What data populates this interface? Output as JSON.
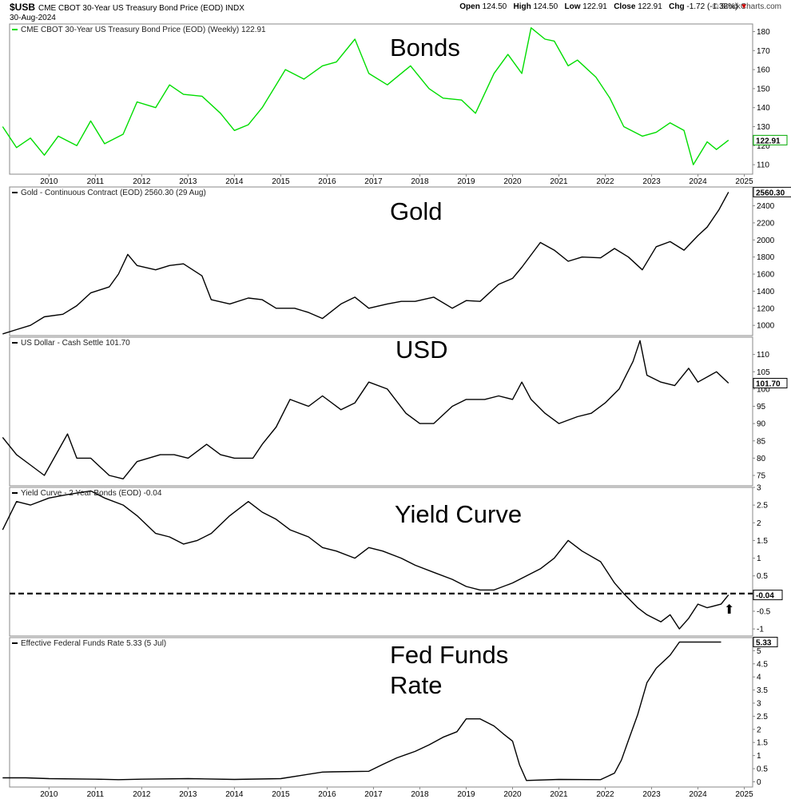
{
  "header": {
    "symbol": "$USB",
    "description": "CME CBOT 30-Year US Treasury Bond Price (EOD)",
    "exchange": "INDX",
    "date": "30-Aug-2024",
    "brand": "© StockCharts.com",
    "open_label": "Open",
    "open": "124.50",
    "high_label": "High",
    "high": "124.50",
    "low_label": "Low",
    "low": "122.91",
    "close_label": "Close",
    "close": "122.91",
    "chg_label": "Chg",
    "chg": "-1.72 (-1.38%)",
    "chg_arrow": "▼"
  },
  "chart_data": [
    {
      "type": "line",
      "id": "bonds",
      "title": "Bonds",
      "legend": "CME CBOT 30-Year US Treasury Bond Price (EOD) (Weekly) 122.91",
      "color": "#00dd00",
      "last_label": "122.91",
      "last_value": 122.91,
      "ylim": [
        105,
        184
      ],
      "yticks": [
        110,
        120,
        130,
        140,
        150,
        160,
        170,
        180
      ],
      "x": [
        2009.0,
        2009.3,
        2009.6,
        2009.9,
        2010.2,
        2010.6,
        2010.9,
        2011.2,
        2011.6,
        2011.9,
        2012.3,
        2012.6,
        2012.9,
        2013.3,
        2013.7,
        2014.0,
        2014.3,
        2014.6,
        2014.9,
        2015.1,
        2015.5,
        2015.9,
        2016.2,
        2016.6,
        2016.9,
        2017.3,
        2017.8,
        2018.2,
        2018.5,
        2018.9,
        2019.2,
        2019.6,
        2019.9,
        2020.2,
        2020.4,
        2020.7,
        2020.9,
        2021.2,
        2021.4,
        2021.8,
        2022.1,
        2022.4,
        2022.8,
        2023.1,
        2023.4,
        2023.7,
        2023.9,
        2024.2,
        2024.4,
        2024.66
      ],
      "values": [
        130,
        119,
        124,
        115,
        125,
        120,
        133,
        121,
        126,
        143,
        140,
        152,
        147,
        146,
        137,
        128,
        131,
        140,
        152,
        160,
        155,
        162,
        164,
        176,
        158,
        152,
        162,
        150,
        145,
        144,
        137,
        158,
        168,
        158,
        182,
        176,
        175,
        162,
        165,
        156,
        145,
        130,
        125,
        127,
        132,
        128,
        110,
        122,
        118,
        122.9
      ]
    },
    {
      "type": "line",
      "id": "gold",
      "title": "Gold",
      "legend": "Gold - Continuous Contract (EOD) 2560.30 (29 Aug)",
      "color": "#000000",
      "last_label": "2560.30",
      "last_value": 2560.3,
      "ylim": [
        880,
        2620
      ],
      "yticks": [
        1000,
        1200,
        1400,
        1600,
        1800,
        2000,
        2200,
        2400
      ],
      "x": [
        2009.0,
        2009.3,
        2009.6,
        2009.9,
        2010.3,
        2010.6,
        2010.9,
        2011.3,
        2011.5,
        2011.7,
        2011.9,
        2012.3,
        2012.6,
        2012.9,
        2013.3,
        2013.5,
        2013.9,
        2014.3,
        2014.6,
        2014.9,
        2015.3,
        2015.6,
        2015.9,
        2016.3,
        2016.6,
        2016.9,
        2017.3,
        2017.6,
        2017.9,
        2018.3,
        2018.7,
        2019.0,
        2019.3,
        2019.7,
        2020.0,
        2020.2,
        2020.6,
        2020.9,
        2021.2,
        2021.5,
        2021.9,
        2022.2,
        2022.5,
        2022.8,
        2023.1,
        2023.4,
        2023.7,
        2024.0,
        2024.2,
        2024.45,
        2024.66
      ],
      "values": [
        900,
        950,
        1000,
        1100,
        1130,
        1230,
        1380,
        1450,
        1600,
        1830,
        1700,
        1650,
        1700,
        1720,
        1580,
        1300,
        1250,
        1320,
        1300,
        1200,
        1200,
        1150,
        1080,
        1250,
        1330,
        1200,
        1250,
        1280,
        1280,
        1330,
        1200,
        1290,
        1280,
        1480,
        1550,
        1680,
        1970,
        1880,
        1750,
        1800,
        1790,
        1900,
        1800,
        1650,
        1920,
        1980,
        1880,
        2050,
        2150,
        2350,
        2560
      ]
    },
    {
      "type": "line",
      "id": "usd",
      "title": "USD",
      "legend": "US Dollar - Cash Settle 101.70",
      "color": "#000000",
      "last_label": "101.70",
      "last_value": 101.7,
      "ylim": [
        72,
        115
      ],
      "yticks": [
        75,
        80,
        85,
        90,
        95,
        100,
        105,
        110
      ],
      "x": [
        2009.0,
        2009.3,
        2009.6,
        2009.9,
        2010.4,
        2010.6,
        2010.9,
        2011.3,
        2011.6,
        2011.9,
        2012.4,
        2012.7,
        2013.0,
        2013.4,
        2013.7,
        2014.0,
        2014.4,
        2014.6,
        2014.9,
        2015.2,
        2015.6,
        2015.9,
        2016.3,
        2016.6,
        2016.9,
        2017.3,
        2017.7,
        2018.0,
        2018.3,
        2018.7,
        2019.0,
        2019.4,
        2019.7,
        2020.0,
        2020.2,
        2020.4,
        2020.7,
        2021.0,
        2021.4,
        2021.7,
        2022.0,
        2022.3,
        2022.6,
        2022.75,
        2022.9,
        2023.2,
        2023.5,
        2023.8,
        2024.0,
        2024.4,
        2024.66
      ],
      "values": [
        86,
        81,
        78,
        75,
        87,
        80,
        80,
        75,
        74,
        79,
        81,
        81,
        80,
        84,
        81,
        80,
        80,
        84,
        89,
        97,
        95,
        98,
        94,
        96,
        102,
        100,
        93,
        90,
        90,
        95,
        97,
        97,
        98,
        97,
        102,
        97,
        93,
        90,
        92,
        93,
        96,
        100,
        108,
        114,
        104,
        102,
        101,
        106,
        102,
        105,
        101.7
      ]
    },
    {
      "type": "line",
      "id": "yield_curve",
      "title": "Yield Curve",
      "legend": "Yield Curve - 2 Year Bonds (EOD) -0.04",
      "color": "#000000",
      "last_label": "-0.04",
      "last_value": -0.04,
      "reference_line": 0,
      "arrow_label": "⬆",
      "ylim": [
        -1.2,
        3.0
      ],
      "yticks": [
        3.0,
        2.5,
        2.0,
        1.5,
        1.0,
        0.5,
        -0.5,
        -1.0
      ],
      "x": [
        2009.0,
        2009.3,
        2009.6,
        2010.0,
        2010.4,
        2010.9,
        2011.2,
        2011.6,
        2011.9,
        2012.3,
        2012.6,
        2012.9,
        2013.2,
        2013.5,
        2013.9,
        2014.3,
        2014.6,
        2014.9,
        2015.2,
        2015.6,
        2015.9,
        2016.2,
        2016.6,
        2016.9,
        2017.2,
        2017.6,
        2017.9,
        2018.3,
        2018.7,
        2019.0,
        2019.3,
        2019.6,
        2020.0,
        2020.3,
        2020.6,
        2020.9,
        2021.2,
        2021.5,
        2021.9,
        2022.2,
        2022.4,
        2022.7,
        2022.9,
        2023.2,
        2023.4,
        2023.6,
        2023.8,
        2024.0,
        2024.2,
        2024.5,
        2024.66
      ],
      "values": [
        1.8,
        2.6,
        2.5,
        2.7,
        2.8,
        2.9,
        2.7,
        2.5,
        2.2,
        1.7,
        1.6,
        1.4,
        1.5,
        1.7,
        2.2,
        2.6,
        2.3,
        2.1,
        1.8,
        1.6,
        1.3,
        1.2,
        1.0,
        1.3,
        1.2,
        1.0,
        0.8,
        0.6,
        0.4,
        0.2,
        0.1,
        0.1,
        0.3,
        0.5,
        0.7,
        1.0,
        1.5,
        1.2,
        0.9,
        0.3,
        0.0,
        -0.4,
        -0.6,
        -0.8,
        -0.6,
        -1.0,
        -0.7,
        -0.3,
        -0.4,
        -0.3,
        -0.04
      ]
    },
    {
      "type": "line",
      "id": "fed_funds",
      "title": "Fed Funds",
      "title2": "Rate",
      "legend": "Effective Federal Funds Rate 5.33 (5 Jul)",
      "color": "#000000",
      "last_label": "5.33",
      "last_value": 5.33,
      "ylim": [
        -0.2,
        5.5
      ],
      "yticks": [
        0.0,
        0.5,
        1.0,
        1.5,
        2.0,
        2.5,
        3.0,
        3.5,
        4.0,
        4.5,
        5.0
      ],
      "x": [
        2009.0,
        2009.5,
        2010.0,
        2011.0,
        2011.5,
        2012.0,
        2013.0,
        2014.0,
        2015.0,
        2015.9,
        2016.1,
        2016.9,
        2017.2,
        2017.5,
        2017.9,
        2018.2,
        2018.5,
        2018.8,
        2019.0,
        2019.3,
        2019.6,
        2019.8,
        2020.0,
        2020.15,
        2020.3,
        2021.0,
        2021.9,
        2022.2,
        2022.35,
        2022.5,
        2022.7,
        2022.9,
        2023.1,
        2023.4,
        2023.6,
        2024.0,
        2024.5
      ],
      "values": [
        0.15,
        0.15,
        0.12,
        0.1,
        0.08,
        0.1,
        0.12,
        0.09,
        0.12,
        0.37,
        0.38,
        0.4,
        0.66,
        0.91,
        1.16,
        1.41,
        1.7,
        1.91,
        2.4,
        2.4,
        2.13,
        1.83,
        1.55,
        0.65,
        0.05,
        0.09,
        0.08,
        0.33,
        0.83,
        1.58,
        2.56,
        3.78,
        4.33,
        4.83,
        5.33,
        5.33,
        5.33
      ]
    }
  ],
  "x_axis": {
    "ticks": [
      "2010",
      "2011",
      "2012",
      "2013",
      "2014",
      "2015",
      "2016",
      "2017",
      "2018",
      "2019",
      "2020",
      "2021",
      "2022",
      "2023",
      "2024",
      "2025"
    ],
    "xlim": [
      2009.15,
      2025.18
    ]
  }
}
